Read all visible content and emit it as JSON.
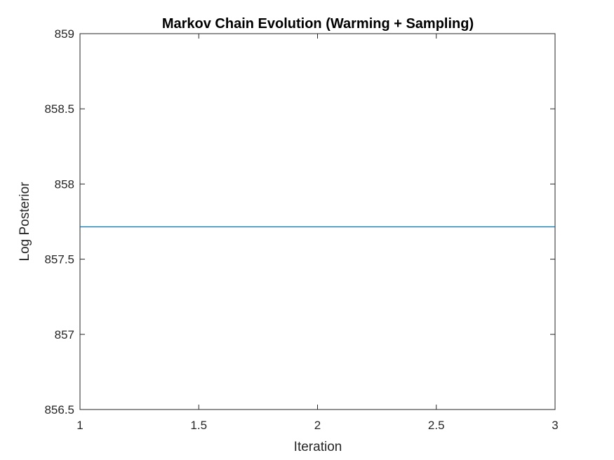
{
  "chart_data": {
    "type": "line",
    "title": "Markov Chain Evolution (Warming + Sampling)",
    "xlabel": "Iteration",
    "ylabel": "Log Posterior",
    "xlim": [
      1,
      3
    ],
    "ylim": [
      856.5,
      859
    ],
    "xticks": [
      1,
      1.5,
      2,
      2.5,
      3
    ],
    "xtick_labels": [
      "1",
      "1.5",
      "2",
      "2.5",
      "3"
    ],
    "yticks": [
      856.5,
      857,
      857.5,
      858,
      858.5,
      859
    ],
    "ytick_labels": [
      "856.5",
      "857",
      "857.5",
      "858",
      "858.5",
      "859"
    ],
    "grid": false,
    "series": [
      {
        "x": [
          1,
          2,
          3
        ],
        "y": [
          857.715,
          857.715,
          857.715
        ],
        "color": "#0072BD"
      }
    ]
  }
}
